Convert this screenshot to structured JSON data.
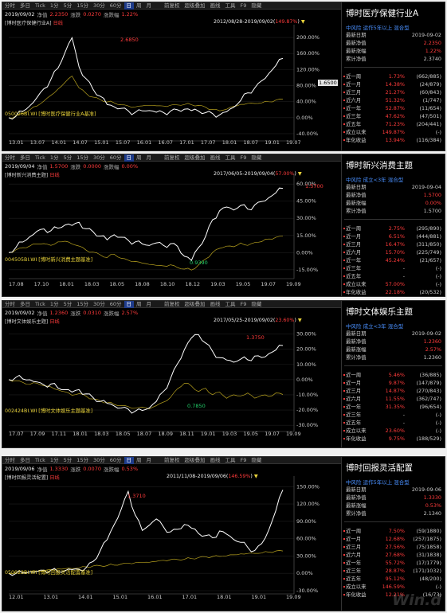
{
  "toolbar": {
    "full": [
      "分时",
      "多日",
      "Tick",
      "1分",
      "5分",
      "15分",
      "30分",
      "60分",
      "日",
      "周",
      "月",
      "前复权",
      "超级叠加",
      "画线",
      "工具",
      "F9",
      "隐藏"
    ],
    "short": [
      "分时",
      "多日",
      "Tick",
      "1分",
      "5分",
      "15分",
      "30分",
      "60分",
      "日",
      "周",
      "月",
      "前复权",
      "超级叠加",
      "画线",
      "工具",
      "F9",
      "隐藏"
    ]
  },
  "panels": [
    {
      "info": {
        "date": "2019/09/02",
        "nav_label": "净值",
        "nav": "2.2350",
        "chg_label": "涨跌",
        "chg": "0.0270",
        "pct_label": "涨跌幅",
        "pct": "1.22%"
      },
      "sublabel": "[博时医疗保健行业A]",
      "sublabel_tag": "日线",
      "range": "2012/08/28-2019/09/02",
      "range_pct": "149.87%",
      "peak": "2.6850",
      "trough": "",
      "lastval": "1.6500",
      "bench": "050026BI.WI [博时医疗保健行业A基准]",
      "yticks": [
        "200.00%",
        "160.00%",
        "120.00%",
        "80.00%",
        "40.00%",
        "0.00%",
        "-40.00%"
      ],
      "xticks": [
        "13.01",
        "13.07",
        "14.01",
        "14.07",
        "15.01",
        "15.07",
        "16.01",
        "16.07",
        "17.01",
        "17.07",
        "18.01",
        "18.07",
        "19.01",
        "19.07"
      ],
      "side": {
        "title": "博时医疗保健行业A",
        "badges": "中风险  运作5年以上  混合型",
        "top": [
          [
            "最新日期",
            "2019-09-02"
          ],
          [
            "最新净值",
            "2.2350"
          ],
          [
            "最新涨幅",
            "1.22%"
          ],
          [
            "累计净值",
            "2.3740"
          ]
        ],
        "rows": [
          [
            "近一周",
            "1.73%",
            "(662/885)"
          ],
          [
            "近一月",
            "14.38%",
            "(24/879)"
          ],
          [
            "近三月",
            "21.27%",
            "(60/843)"
          ],
          [
            "近六月",
            "51.32%",
            "(1/747)"
          ],
          [
            "近一年",
            "52.87%",
            "(11/654)"
          ],
          [
            "近三年",
            "47.62%",
            "(47/501)"
          ],
          [
            "近五年",
            "71.23%",
            "(204/441)"
          ],
          [
            "成立以来",
            "149.87%",
            "(-)"
          ],
          [
            "年化收益",
            "13.94%",
            "(116/384)"
          ]
        ]
      },
      "chart_data": {
        "type": "line",
        "series": [
          {
            "values": [
              0,
              5,
              18,
              30,
              48,
              70,
              95,
              125,
              165,
              200,
              125,
              95,
              70,
              55,
              35,
              28,
              22,
              15,
              12,
              18,
              20,
              15,
              12,
              14,
              18,
              22,
              20,
              18,
              12,
              8,
              5,
              15,
              28,
              45,
              62,
              72,
              90,
              110,
              132,
              150
            ]
          },
          {
            "values": [
              0,
              3,
              10,
              20,
              30,
              42,
              55,
              70,
              88,
              105,
              75,
              60,
              50,
              45,
              40,
              38,
              32,
              28,
              26,
              30,
              32,
              30,
              28,
              30,
              32,
              34,
              33,
              30,
              25,
              20,
              18,
              22,
              28,
              32,
              35,
              36,
              38,
              40,
              43,
              45
            ]
          }
        ],
        "ylim": [
          -50,
          220
        ]
      }
    },
    {
      "info": {
        "date": "2019/09/04",
        "nav_label": "净值",
        "nav": "1.5700",
        "chg_label": "涨跌",
        "chg": "0.0000",
        "pct_label": "涨跌幅",
        "pct": "0.00%"
      },
      "sublabel": "[博时新兴消费主题]",
      "sublabel_tag": "日线",
      "range": "2017/06/05-2019/09/04",
      "range_pct": "57.00%",
      "peak": "1.5700",
      "trough": "0.9390",
      "lastval": "",
      "bench": "004505BI.WI [博时新兴消费主题基准]",
      "yticks": [
        "60.00%",
        "45.00%",
        "30.00%",
        "15.00%",
        "0.00%",
        "-15.00%"
      ],
      "xticks": [
        "17.08",
        "17.10",
        "18.01",
        "18.03",
        "18.05",
        "18.08",
        "18.10",
        "18.12",
        "19.03",
        "19.05",
        "19.07",
        "19.09"
      ],
      "side": {
        "title": "博时新兴消费主题",
        "badges": "中风险  成立<3年  混合型",
        "top": [
          [
            "最新日期",
            "2019-09-04"
          ],
          [
            "最新净值",
            "1.5700"
          ],
          [
            "最新涨幅",
            "0.00%"
          ],
          [
            "累计净值",
            "1.5700"
          ]
        ],
        "rows": [
          [
            "近一周",
            "2.75%",
            "(295/890)"
          ],
          [
            "近一月",
            "6.51%",
            "(444/881)"
          ],
          [
            "近三月",
            "16.47%",
            "(311/850)"
          ],
          [
            "近六月",
            "15.70%",
            "(225/749)"
          ],
          [
            "近一年",
            "45.24%",
            "(21/657)"
          ],
          [
            "近三年",
            "-",
            "(-)"
          ],
          [
            "近五年",
            "-",
            "(-)"
          ],
          [
            "成立以来",
            "57.00%",
            "(-)"
          ],
          [
            "年化收益",
            "22.18%",
            "(20/532)"
          ]
        ]
      },
      "chart_data": {
        "type": "line",
        "series": [
          {
            "values": [
              0,
              5,
              10,
              14,
              18,
              20,
              19,
              22,
              25,
              24,
              26,
              20,
              18,
              15,
              12,
              16,
              13,
              10,
              9,
              8,
              7,
              9,
              6,
              7,
              5,
              -3,
              -6,
              5,
              14,
              28,
              36,
              40,
              38,
              42,
              38,
              41,
              44,
              48,
              53,
              57
            ]
          },
          {
            "values": [
              0,
              2,
              4,
              6,
              8,
              8,
              6,
              9,
              10,
              8,
              6,
              2,
              0,
              -2,
              -4,
              -1,
              -5,
              -7,
              -8,
              -9,
              -10,
              -11,
              -12,
              -11,
              -13,
              -14,
              -15,
              -11,
              -6,
              0,
              4,
              6,
              5,
              8,
              6,
              9,
              10,
              12,
              13,
              14
            ]
          }
        ],
        "ylim": [
          -20,
          65
        ]
      }
    },
    {
      "info": {
        "date": "2019/09/02",
        "nav_label": "净值",
        "nav": "1.2360",
        "chg_label": "涨跌",
        "chg": "0.0310",
        "pct_label": "涨跌幅",
        "pct": "2.57%"
      },
      "sublabel": "[博时文体娱乐主题]",
      "sublabel_tag": "日线",
      "range": "2017/05/25-2019/09/02",
      "range_pct": "23.60%",
      "peak": "1.3750",
      "trough": "0.7850",
      "lastval": "",
      "bench": "002424BI.WI [博时文体娱乐主题基准]",
      "yticks": [
        "30.00%",
        "20.00%",
        "10.00%",
        "0.00%",
        "-10.00%",
        "-20.00%",
        "-30.00%"
      ],
      "xticks": [
        "17.07",
        "17.09",
        "17.11",
        "18.01",
        "18.03",
        "18.05",
        "18.07",
        "18.09",
        "18.11",
        "19.01",
        "19.03",
        "19.05",
        "19.07",
        "19.09"
      ],
      "side": {
        "title": "博时文体娱乐主题",
        "badges": "中风险  成立<3年  混合型",
        "top": [
          [
            "最新日期",
            "2019-09-02"
          ],
          [
            "最新净值",
            "1.2360"
          ],
          [
            "最新涨幅",
            "2.57%"
          ],
          [
            "累计净值",
            "1.2360"
          ]
        ],
        "rows": [
          [
            "近一周",
            "5.46%",
            "(36/885)"
          ],
          [
            "近一月",
            "9.87%",
            "(147/879)"
          ],
          [
            "近三月",
            "14.87%",
            "(270/843)"
          ],
          [
            "近六月",
            "11.55%",
            "(362/747)"
          ],
          [
            "近一年",
            "31.35%",
            "(96/654)"
          ],
          [
            "近三年",
            "-",
            "(-)"
          ],
          [
            "近五年",
            "-",
            "(-)"
          ],
          [
            "成立以来",
            "23.60%",
            "(-)"
          ],
          [
            "年化收益",
            "9.75%",
            "(188/529)"
          ]
        ]
      },
      "chart_data": {
        "type": "line",
        "series": [
          {
            "values": [
              0,
              2,
              1,
              0,
              -2,
              -4,
              -3,
              -5,
              -6,
              -8,
              -7,
              -10,
              -12,
              -14,
              -15,
              -17,
              -19,
              -20,
              -21,
              -20,
              -18,
              -14,
              -8,
              0,
              10,
              20,
              28,
              30,
              24,
              18,
              14,
              13,
              12,
              14,
              13,
              15,
              14,
              17,
              20,
              23
            ]
          },
          {
            "values": [
              0,
              -1,
              -2,
              -3,
              -2,
              -4,
              -5,
              -7,
              -8,
              -10,
              -9,
              -11,
              -13,
              -14,
              -15,
              -16,
              -17,
              -18,
              -19,
              -18,
              -19,
              -17,
              -15,
              -12,
              -6,
              -2,
              -4,
              -8,
              -6,
              -10,
              -8,
              -12,
              -10,
              -11,
              -9,
              -12,
              -10,
              -11,
              -9,
              -10
            ]
          }
        ],
        "ylim": [
          -32,
          35
        ]
      }
    },
    {
      "info": {
        "date": "2019/09/06",
        "nav_label": "净值",
        "nav": "1.3330",
        "chg_label": "涨跌",
        "chg": "0.0070",
        "pct_label": "涨跌幅",
        "pct": "0.53%"
      },
      "sublabel": "[博时回报灵活配置]",
      "sublabel_tag": "日线",
      "range": "2011/11/08-2019/09/06",
      "range_pct": "146.59%",
      "peak": "1.3710",
      "trough": "",
      "lastval": "",
      "bench": "050022BI.WI [博时回报灵活配置基准]",
      "yticks": [
        "150.00%",
        "120.00%",
        "90.00%",
        "60.00%",
        "30.00%",
        "0.00%",
        "-30.00%"
      ],
      "xticks": [
        "12.01",
        "13.01",
        "14.01",
        "15.01",
        "16.01",
        "17.01",
        "18.01",
        "19.01",
        "19.09"
      ],
      "side": {
        "title": "博时回报灵活配置",
        "badges": "中风险  运作5年以上  混合型",
        "top": [
          [
            "最新日期",
            "2019-09-06"
          ],
          [
            "最新净值",
            "1.3330"
          ],
          [
            "最新涨幅",
            "0.53%"
          ],
          [
            "累计净值",
            "2.1340"
          ]
        ],
        "rows": [
          [
            "近一周",
            "7.50%",
            "(59/1880)"
          ],
          [
            "近一月",
            "12.68%",
            "(257/1875)"
          ],
          [
            "近三月",
            "27.56%",
            "(75/1858)"
          ],
          [
            "近六月",
            "27.68%",
            "(31/1838)"
          ],
          [
            "近一年",
            "55.72%",
            "(17/1779)"
          ],
          [
            "近三年",
            "28.87%",
            "(171/1032)"
          ],
          [
            "近五年",
            "95.12%",
            "(48/200)"
          ],
          [
            "成立以来",
            "146.59%",
            "(-)"
          ],
          [
            "年化收益",
            "12.21%",
            "(16/73)"
          ]
        ]
      },
      "chart_data": {
        "type": "line",
        "series": [
          {
            "values": [
              0,
              1,
              2,
              3,
              2,
              4,
              5,
              4,
              6,
              7,
              6,
              8,
              20,
              40,
              60,
              85,
              110,
              140,
              100,
              75,
              85,
              95,
              80,
              70,
              75,
              85,
              80,
              70,
              65,
              60,
              72,
              68,
              60,
              55,
              45,
              38,
              50,
              75,
              110,
              146
            ]
          },
          {
            "values": [
              0,
              1,
              2,
              3,
              4,
              5,
              6,
              7,
              8,
              9,
              10,
              11,
              12,
              13,
              14,
              15,
              16,
              17,
              18,
              19,
              20,
              21,
              22,
              23,
              24,
              25,
              26,
              27,
              28,
              29,
              30,
              31,
              32,
              33,
              34,
              35,
              36,
              37,
              38,
              38
            ]
          }
        ],
        "ylim": [
          -30,
          160
        ]
      }
    }
  ],
  "watermark": "Win.d"
}
